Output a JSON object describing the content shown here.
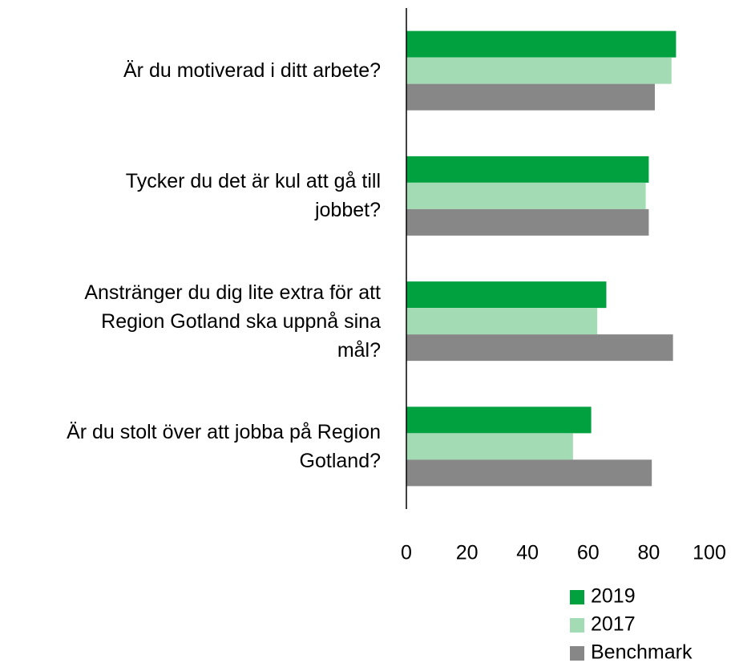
{
  "chart_data": {
    "type": "barh",
    "categories": [
      "Är du motiverad i ditt arbete?",
      "Tycker du det är kul att gå till\njobbet?",
      "Anstränger du dig lite extra för att\nRegion Gotland ska uppnå sina\nmål?",
      "Är du stolt över att jobba på Region\nGotland?"
    ],
    "series": [
      {
        "name": "2019",
        "color": "#00a13e",
        "values": [
          89,
          80,
          66,
          61
        ]
      },
      {
        "name": "2017",
        "color": "#a3dcb4",
        "values": [
          87.5,
          79,
          63,
          55
        ]
      },
      {
        "name": "Benchmark",
        "color": "#878787",
        "values": [
          82,
          80,
          88,
          81
        ]
      }
    ],
    "xlim": [
      0,
      100
    ],
    "xticks": [
      0,
      20,
      40,
      60,
      80,
      100
    ],
    "grid": false,
    "legend": "bottom-right"
  }
}
